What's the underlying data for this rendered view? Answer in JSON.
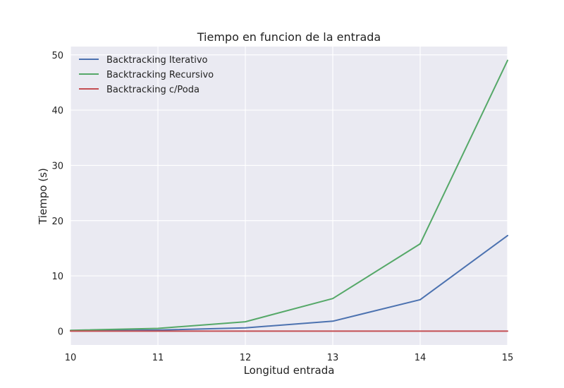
{
  "chart_data": {
    "type": "line",
    "title": "Tiempo en funcion de la entrada",
    "xlabel": "Longitud entrada",
    "ylabel": "Tiempo (s)",
    "x": [
      10,
      11,
      12,
      13,
      14,
      15
    ],
    "xlim": [
      10,
      15
    ],
    "ylim": [
      -2.5,
      51.5
    ],
    "xticks": [
      10,
      11,
      12,
      13,
      14,
      15
    ],
    "yticks": [
      0,
      10,
      20,
      30,
      40,
      50
    ],
    "grid": true,
    "legend_position": "top-left",
    "series": [
      {
        "name": "Backtracking Iterativo",
        "color": "#4c72b0",
        "values": [
          0.05,
          0.2,
          0.6,
          1.8,
          5.7,
          17.3
        ]
      },
      {
        "name": "Backtracking Recursivo",
        "color": "#55a868",
        "values": [
          0.15,
          0.5,
          1.7,
          5.9,
          15.8,
          49.0
        ]
      },
      {
        "name": "Backtracking c/Poda",
        "color": "#c44e52",
        "values": [
          0.0,
          0.0,
          0.0,
          0.0,
          0.0,
          0.0
        ]
      }
    ]
  }
}
